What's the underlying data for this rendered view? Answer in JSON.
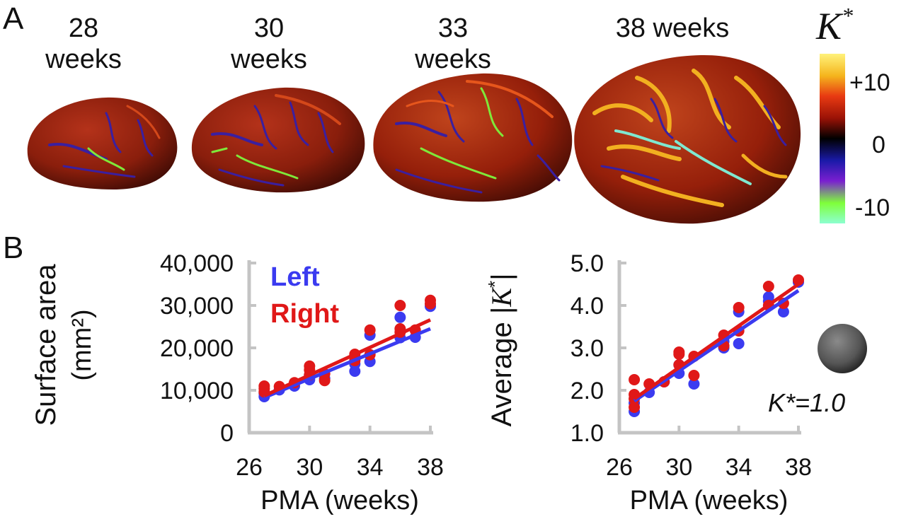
{
  "panel_a": {
    "letter": "A",
    "ages": [
      {
        "line1": "28",
        "line2": "weeks"
      },
      {
        "line1": "30",
        "line2": "weeks"
      },
      {
        "line1": "33",
        "line2": "weeks"
      },
      {
        "line1": "38 weeks",
        "line2": ""
      }
    ],
    "colorbar": {
      "title": "K",
      "title_sup": "*",
      "ticks": [
        "+10",
        "0",
        "-10"
      ],
      "colors": [
        "#fff27a",
        "#f5b51d",
        "#e83a12",
        "#9a1206",
        "#000000",
        "#1a1aa8",
        "#7a1fd0",
        "#7fff3a",
        "#8cffd0"
      ]
    }
  },
  "panel_b": {
    "letter": "B",
    "reference": {
      "label": "K*=1.0"
    }
  },
  "chart_data": [
    {
      "type": "scatter",
      "title": "",
      "xlabel": "PMA (weeks)",
      "ylabel": "Surface area (mm²)",
      "ylabel_line1": "Surface area",
      "ylabel_line2": "(mm²)",
      "xlim": [
        26,
        38
      ],
      "ylim": [
        0,
        40000
      ],
      "xticks": [
        "26",
        "30",
        "34",
        "38"
      ],
      "yticks": [
        "0",
        "10,000",
        "20,000",
        "30,000",
        "40,000"
      ],
      "legend": "top-left",
      "series": [
        {
          "name": "Left",
          "color": "#3b3bf0",
          "points": [
            [
              27,
              8500
            ],
            [
              27,
              9300
            ],
            [
              28,
              10100
            ],
            [
              29,
              11000
            ],
            [
              30,
              12500
            ],
            [
              30,
              13600
            ],
            [
              31,
              12800
            ],
            [
              33,
              14500
            ],
            [
              33,
              16200
            ],
            [
              34,
              16800
            ],
            [
              34,
              23000
            ],
            [
              36,
              22400
            ],
            [
              36,
              27200
            ],
            [
              37,
              22500
            ],
            [
              38,
              29800
            ]
          ],
          "fit": [
            [
              27,
              8300
            ],
            [
              38,
              24500
            ]
          ]
        },
        {
          "name": "Right",
          "color": "#e01818",
          "points": [
            [
              27,
              9600
            ],
            [
              27,
              10400
            ],
            [
              27,
              11000
            ],
            [
              28,
              10900
            ],
            [
              29,
              11800
            ],
            [
              30,
              13600
            ],
            [
              30,
              14800
            ],
            [
              30,
              15700
            ],
            [
              31,
              12300
            ],
            [
              31,
              13900
            ],
            [
              33,
              17000
            ],
            [
              33,
              18500
            ],
            [
              34,
              18400
            ],
            [
              34,
              24200
            ],
            [
              36,
              23700
            ],
            [
              36,
              24500
            ],
            [
              36,
              30000
            ],
            [
              37,
              24200
            ],
            [
              38,
              30400
            ],
            [
              38,
              31200
            ]
          ],
          "fit": [
            [
              27,
              8700
            ],
            [
              38,
              26600
            ]
          ]
        }
      ]
    },
    {
      "type": "scatter",
      "title": "",
      "xlabel": "PMA (weeks)",
      "ylabel": "Average |K*|",
      "ylabel_word": "Average",
      "ylabel_sym": "K",
      "ylabel_sup": "*",
      "xlim": [
        26,
        38
      ],
      "ylim": [
        1.0,
        5.0
      ],
      "xticks": [
        "26",
        "30",
        "34",
        "38"
      ],
      "yticks": [
        "1.0",
        "2.0",
        "3.0",
        "4.0",
        "5.0"
      ],
      "series": [
        {
          "name": "",
          "color": "#3b3bf0",
          "points": [
            [
              27,
              1.5
            ],
            [
              27,
              1.7
            ],
            [
              28,
              1.95
            ],
            [
              29,
              2.2
            ],
            [
              30,
              2.4
            ],
            [
              30,
              2.6
            ],
            [
              31,
              2.15
            ],
            [
              33,
              3.0
            ],
            [
              33,
              3.15
            ],
            [
              34,
              3.1
            ],
            [
              34,
              3.85
            ],
            [
              36,
              4.1
            ],
            [
              36,
              4.2
            ],
            [
              37,
              3.85
            ],
            [
              38,
              4.55
            ]
          ],
          "fit": [
            [
              27,
              1.75
            ],
            [
              38,
              4.35
            ]
          ]
        },
        {
          "name": "",
          "color": "#e01818",
          "points": [
            [
              27,
              1.6
            ],
            [
              27,
              1.8
            ],
            [
              27,
              1.9
            ],
            [
              27,
              2.25
            ],
            [
              28,
              2.15
            ],
            [
              29,
              2.2
            ],
            [
              30,
              2.6
            ],
            [
              30,
              2.85
            ],
            [
              30,
              2.9
            ],
            [
              31,
              2.35
            ],
            [
              31,
              2.8
            ],
            [
              33,
              3.05
            ],
            [
              33,
              3.3
            ],
            [
              34,
              3.4
            ],
            [
              34,
              3.95
            ],
            [
              36,
              4.0
            ],
            [
              36,
              4.45
            ],
            [
              37,
              4.05
            ],
            [
              38,
              4.6
            ]
          ],
          "fit": [
            [
              27,
              1.8
            ],
            [
              38,
              4.5
            ]
          ]
        }
      ]
    }
  ]
}
